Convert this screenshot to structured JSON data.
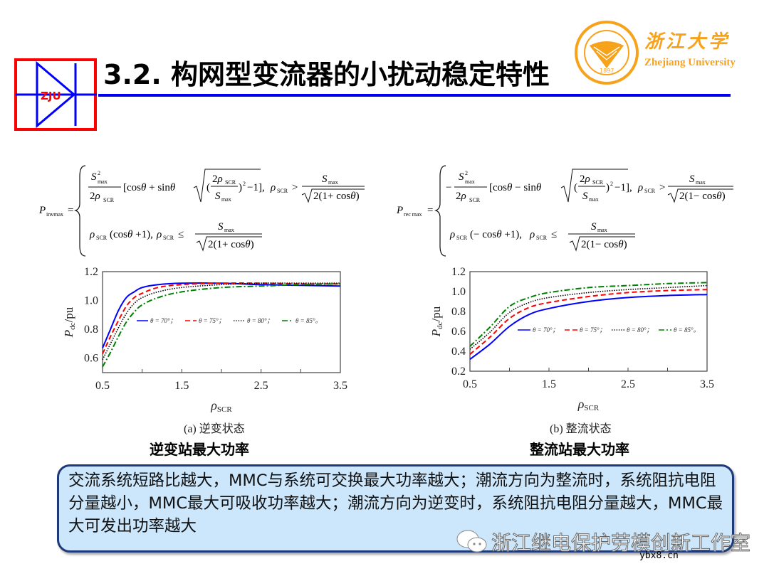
{
  "header": {
    "title": "3.2. 构网型变流器的小扰动稳定特性",
    "logo_text": "ZJU",
    "university_cn": "浙江大学",
    "university_en": "Zhejiang University",
    "seal_year": "1897",
    "seal_text": "ZHEJIANG UNIVERSITY",
    "colors": {
      "rule": "#0000ee",
      "logo_red": "#ff0000",
      "logo_blue": "#0000ff",
      "brand_orange": "#f7a21b"
    }
  },
  "formulas": {
    "inverter": {
      "lhs": "P_invmax",
      "case1": "S²max/(2ρSCR)·[cosθ + sinθ·√((2ρSCR/Smax)² − 1)], ρSCR > Smax/√(2(1+cosθ))",
      "case2": "ρSCR(cosθ + 1), ρSCR ≤ Smax/√(2(1+cosθ))"
    },
    "rectifier": {
      "lhs": "P_recmax",
      "case1": "−S²max/(2ρSCR)·[cosθ − sinθ·√((2ρSCR/Smax)² − 1)], ρSCR > Smax/√(2(1−cosθ))",
      "case2": "ρSCR(−cosθ + 1), ρSCR ≤ Smax/√(2(1−cosθ))"
    }
  },
  "charts": {
    "a": {
      "caption": "(a)  逆变状态",
      "subtitle": "逆变站最大功率",
      "ylabel": "Pdc/pu",
      "xlabel": "ρSCR"
    },
    "b": {
      "caption": "(b)  整流状态",
      "subtitle": "整流站最大功率",
      "ylabel": "Pdc/pu",
      "xlabel": "ρSCR"
    }
  },
  "chart_data": [
    {
      "type": "line",
      "title": "(a) 逆变状态",
      "xlabel": "ρSCR",
      "ylabel": "Pdc/pu",
      "xlim": [
        0.5,
        3.5
      ],
      "ylim": [
        0.5,
        1.2
      ],
      "xticks": [
        "0.5",
        "1.5",
        "2.5",
        "3.5"
      ],
      "yticks": [
        "0.6",
        "0.8",
        "1.0",
        "1.2"
      ],
      "legend_position": "center",
      "grid": false,
      "x": [
        0.5,
        0.6,
        0.7,
        0.8,
        0.9,
        1.0,
        1.2,
        1.5,
        2.0,
        2.5,
        3.0,
        3.5
      ],
      "series": [
        {
          "name": "θ=70°",
          "color": "#0000ff",
          "style": "solid",
          "values": [
            0.67,
            0.8,
            0.93,
            1.02,
            1.06,
            1.09,
            1.11,
            1.12,
            1.12,
            1.11,
            1.105,
            1.1
          ]
        },
        {
          "name": "θ=75°",
          "color": "#ff0000",
          "style": "dashed",
          "values": [
            0.63,
            0.75,
            0.86,
            0.96,
            1.02,
            1.05,
            1.09,
            1.11,
            1.12,
            1.12,
            1.115,
            1.115
          ]
        },
        {
          "name": "θ=80°",
          "color": "#000000",
          "style": "dotted",
          "values": [
            0.59,
            0.7,
            0.81,
            0.91,
            0.98,
            1.02,
            1.06,
            1.09,
            1.11,
            1.12,
            1.12,
            1.12
          ]
        },
        {
          "name": "θ=85°",
          "color": "#008000",
          "style": "dashdot",
          "values": [
            0.54,
            0.64,
            0.75,
            0.85,
            0.92,
            0.97,
            1.02,
            1.06,
            1.09,
            1.1,
            1.11,
            1.115
          ]
        }
      ]
    },
    {
      "type": "line",
      "title": "(b) 整流状态",
      "xlabel": "ρSCR",
      "ylabel": "Pdc/pu",
      "xlim": [
        0.5,
        3.5
      ],
      "ylim": [
        0.2,
        1.2
      ],
      "xticks": [
        "0.5",
        "1.5",
        "2.5",
        "3.5"
      ],
      "yticks": [
        "0.2",
        "0.4",
        "0.6",
        "0.8",
        "1.0",
        "1.2"
      ],
      "legend_position": "center-right",
      "grid": false,
      "x": [
        0.5,
        0.75,
        1.0,
        1.25,
        1.5,
        2.0,
        2.5,
        3.0,
        3.5
      ],
      "series": [
        {
          "name": "θ=70°",
          "color": "#0000ff",
          "style": "solid",
          "values": [
            0.32,
            0.47,
            0.65,
            0.77,
            0.83,
            0.9,
            0.94,
            0.96,
            0.97
          ]
        },
        {
          "name": "θ=75°",
          "color": "#ff0000",
          "style": "dashed",
          "values": [
            0.37,
            0.54,
            0.73,
            0.84,
            0.89,
            0.95,
            0.99,
            1.01,
            1.02
          ]
        },
        {
          "name": "θ=80°",
          "color": "#000000",
          "style": "dotted",
          "values": [
            0.42,
            0.59,
            0.79,
            0.89,
            0.94,
            0.99,
            1.02,
            1.04,
            1.06
          ]
        },
        {
          "name": "θ=85°",
          "color": "#008000",
          "style": "dashdot",
          "values": [
            0.45,
            0.64,
            0.85,
            0.94,
            0.99,
            1.04,
            1.06,
            1.08,
            1.09
          ]
        }
      ]
    }
  ],
  "summary": {
    "text": "交流系统短路比越大，MMC与系统可交换最大功率越大；潮流方向为整流时，系统阻抗电阻分量越小，MMC最大可吸收功率越大；潮流方向为逆变时，系统阻抗电阻分量越大，MMC最大可发出功率越大"
  },
  "watermark": {
    "text": "浙江继电保护劳模创新工作室",
    "site": "ybx8.cn"
  }
}
